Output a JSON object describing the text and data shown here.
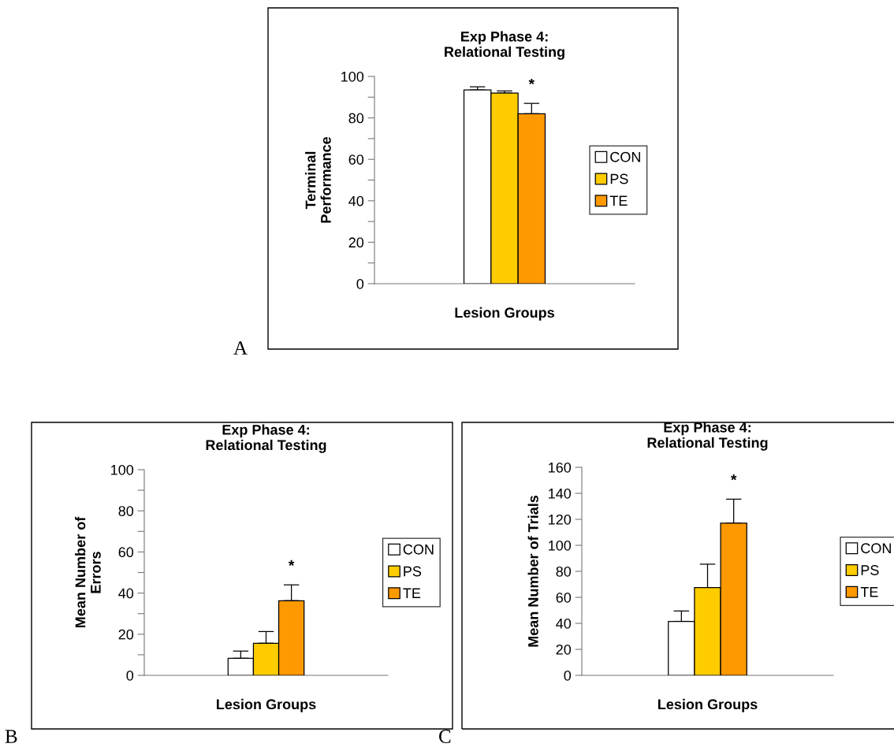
{
  "chart_data": [
    {
      "type": "bar",
      "title": "Exp Phase 4:\nRelational Testing",
      "xlabel": "Lesion Groups",
      "ylabel": "Terminal\nPerformance",
      "categories": [
        null
      ],
      "series": [
        {
          "name": "CON",
          "color": "#ffffff",
          "values": [
            93.5
          ],
          "errors": [
            [
              93.5,
              95
            ]
          ]
        },
        {
          "name": "PS",
          "color": "#ffcc00",
          "values": [
            92
          ],
          "errors": [
            [
              92,
              93
            ]
          ]
        },
        {
          "name": "TE",
          "color": "#ff9900",
          "values": [
            82
          ],
          "errors": [
            [
              82,
              87
            ]
          ],
          "value_labels": [
            "*"
          ]
        }
      ],
      "ylim": [
        0,
        100
      ],
      "yticks": [
        0,
        {
          "value": 10,
          "label": null
        },
        20,
        {
          "value": 30,
          "label": null
        },
        40,
        {
          "value": 50,
          "label": null
        },
        60,
        {
          "value": 70,
          "label": null
        },
        80,
        {
          "value": 90,
          "label": null
        },
        100
      ],
      "legend": "right",
      "grid": false,
      "annotations": [
        "A"
      ]
    },
    {
      "type": "bar",
      "title": "Exp Phase 4:\nRelational Testing",
      "xlabel": "Lesion Groups",
      "ylabel": "Mean Number of\nErrors",
      "categories": [
        null
      ],
      "series": [
        {
          "name": "CON",
          "color": "#ffffff",
          "values": [
            8.3
          ],
          "errors": [
            [
              8.3,
              11.8
            ]
          ]
        },
        {
          "name": "PS",
          "color": "#ffcc00",
          "values": [
            15.6
          ],
          "errors": [
            [
              15.6,
              21.3
            ]
          ]
        },
        {
          "name": "TE",
          "color": "#ff9900",
          "values": [
            36.3
          ],
          "errors": [
            [
              36.3,
              44
            ]
          ],
          "value_labels": [
            "*"
          ]
        }
      ],
      "ylim": [
        0,
        100
      ],
      "yticks": [
        0,
        {
          "value": 10,
          "label": null
        },
        20,
        {
          "value": 30,
          "label": null
        },
        40,
        {
          "value": 50,
          "label": null
        },
        60,
        {
          "value": 70,
          "label": null
        },
        80,
        {
          "value": 90,
          "label": null
        },
        100
      ],
      "legend": "right",
      "grid": false,
      "annotations": [
        "B"
      ]
    },
    {
      "type": "bar",
      "title": "Exp Phase 4:\nRelational Testing",
      "xlabel": "Lesion Groups",
      "ylabel": "Mean Number of Trials",
      "categories": [
        null
      ],
      "series": [
        {
          "name": "CON",
          "color": "#ffffff",
          "values": [
            41.5
          ],
          "errors": [
            [
              41.5,
              49.5
            ]
          ]
        },
        {
          "name": "PS",
          "color": "#ffcc00",
          "values": [
            67.5
          ],
          "errors": [
            [
              67.5,
              85.5
            ]
          ]
        },
        {
          "name": "TE",
          "color": "#ff9900",
          "values": [
            117
          ],
          "errors": [
            [
              117,
              135.5
            ]
          ],
          "value_labels": [
            "*"
          ]
        }
      ],
      "ylim": [
        0,
        160
      ],
      "yticks": [
        0,
        20,
        40,
        60,
        80,
        100,
        120,
        140,
        160
      ],
      "legend": "right",
      "grid": false,
      "annotations": [
        "C"
      ]
    }
  ]
}
